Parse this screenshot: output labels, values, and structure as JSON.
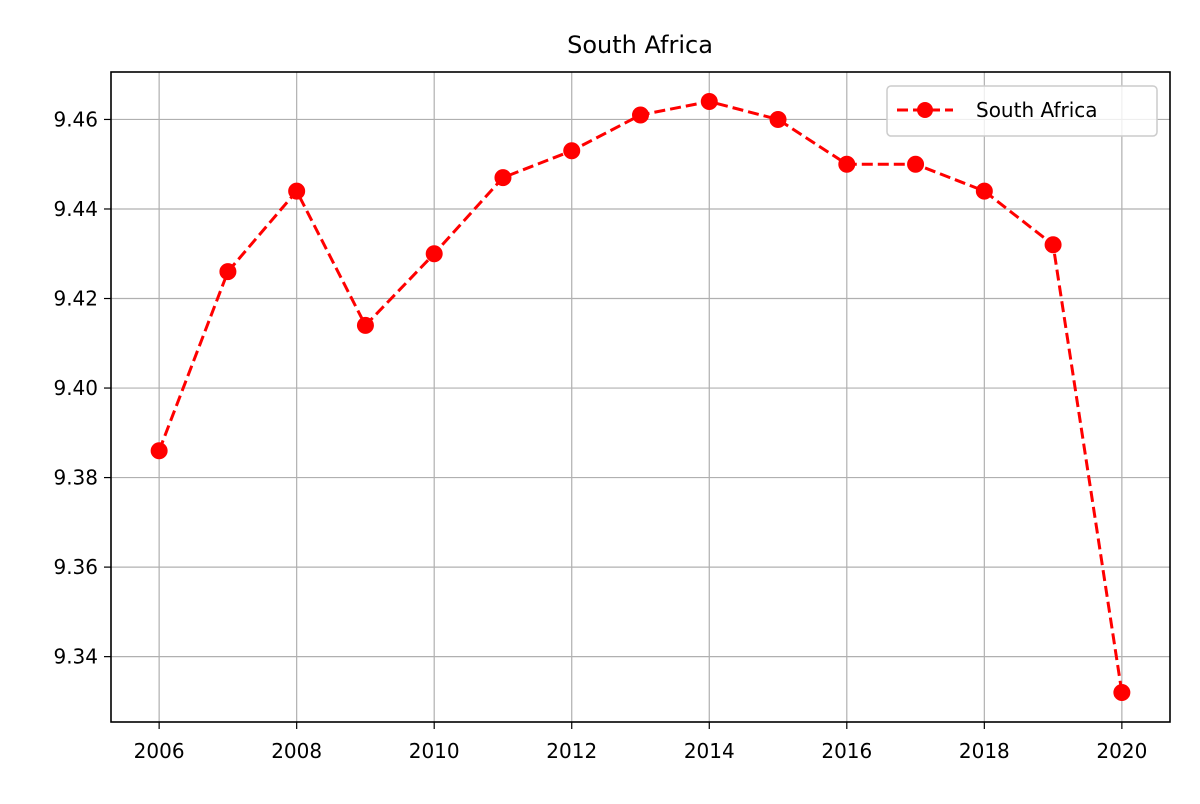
{
  "chart_data": {
    "type": "line",
    "title": "South Africa",
    "xlabel": "",
    "ylabel": "",
    "x": [
      2006,
      2007,
      2008,
      2009,
      2010,
      2011,
      2012,
      2013,
      2014,
      2015,
      2016,
      2017,
      2018,
      2019,
      2020
    ],
    "series": [
      {
        "name": "South Africa",
        "values": [
          9.386,
          9.426,
          9.444,
          9.414,
          9.43,
          9.447,
          9.453,
          9.461,
          9.464,
          9.46,
          9.45,
          9.45,
          9.444,
          9.432,
          9.332
        ],
        "color": "#ff0000",
        "line_style": "dashed",
        "marker": "circle"
      }
    ],
    "xlim": [
      2005.3,
      2020.7
    ],
    "ylim": [
      9.3254,
      9.4706
    ],
    "x_ticks": [
      2006,
      2008,
      2010,
      2012,
      2014,
      2016,
      2018,
      2020
    ],
    "x_tick_labels": [
      "2006",
      "2008",
      "2010",
      "2012",
      "2014",
      "2016",
      "2018",
      "2020"
    ],
    "y_ticks": [
      9.34,
      9.36,
      9.38,
      9.4,
      9.42,
      9.44,
      9.46
    ],
    "y_tick_labels": [
      "9.34",
      "9.36",
      "9.38",
      "9.40",
      "9.42",
      "9.44",
      "9.46"
    ],
    "grid": true,
    "legend_position": "top-right"
  }
}
